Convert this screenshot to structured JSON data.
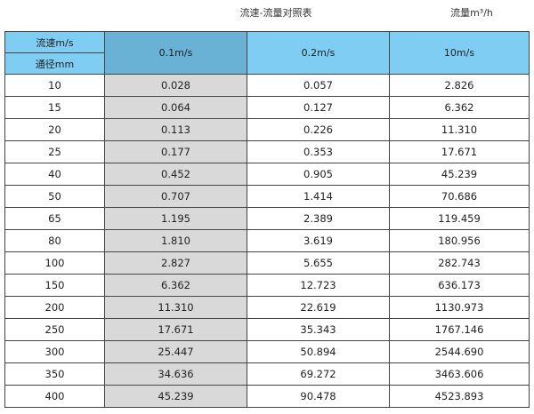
{
  "title": "流速-流量对照表",
  "unit": "流量m³/h",
  "header": {
    "speed_label": "流速m/s",
    "diameter_label": "通径mm",
    "columns": [
      "0.1m/s",
      "0.2m/s",
      "10m/s"
    ]
  },
  "rows": [
    [
      "10",
      "0.028",
      "0.057",
      "2.826"
    ],
    [
      "15",
      "0.064",
      "0.127",
      "6.362"
    ],
    [
      "20",
      "0.113",
      "0.226",
      "11.310"
    ],
    [
      "25",
      "0.177",
      "0.353",
      "17.671"
    ],
    [
      "40",
      "0.452",
      "0.905",
      "45.239"
    ],
    [
      "50",
      "0.707",
      "1.414",
      "70.686"
    ],
    [
      "65",
      "1.195",
      "2.389",
      "119.459"
    ],
    [
      "80",
      "1.810",
      "3.619",
      "180.956"
    ],
    [
      "100",
      "2.827",
      "5.655",
      "282.743"
    ],
    [
      "150",
      "6.362",
      "12.723",
      "636.173"
    ],
    [
      "200",
      "11.310",
      "22.619",
      "1130.973"
    ],
    [
      "250",
      "17.671",
      "35.343",
      "1767.146"
    ],
    [
      "300",
      "25.447",
      "50.894",
      "2544.690"
    ],
    [
      "350",
      "34.636",
      "69.272",
      "3463.606"
    ],
    [
      "400",
      "45.239",
      "90.478",
      "4523.893"
    ]
  ]
}
